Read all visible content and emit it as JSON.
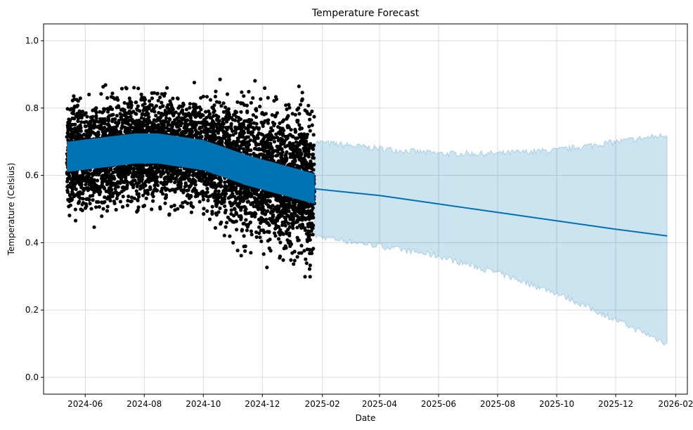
{
  "chart_data": {
    "type": "scatter",
    "title": "Temperature Forecast",
    "xlabel": "Date",
    "ylabel": "Temperature (Celsius)",
    "x_axis_type": "date",
    "xlim": [
      "2024-04-19",
      "2026-02-13"
    ],
    "ylim": [
      -0.05,
      1.05
    ],
    "grid": true,
    "legend": "none",
    "x_ticks": [
      "2024-06",
      "2024-08",
      "2024-10",
      "2024-12",
      "2025-02",
      "2025-04",
      "2025-06",
      "2025-08",
      "2025-10",
      "2025-12",
      "2026-02"
    ],
    "y_ticks": [
      "0.0",
      "0.2",
      "0.4",
      "0.6",
      "0.8",
      "1.0"
    ],
    "colors": {
      "observed_points": "#000000",
      "forecast_line": "#0072B2",
      "uncertainty_band": "#0072B2"
    },
    "observed_range": [
      "2024-05-13",
      "2025-01-24"
    ],
    "observed_value_range": [
      0.0,
      1.0
    ],
    "series": [
      {
        "kind": "forecast_mean",
        "points": [
          {
            "x": "2024-05-13",
            "y": 0.655
          },
          {
            "x": "2024-07-23",
            "y": 0.68
          },
          {
            "x": "2024-08-15",
            "y": 0.68
          },
          {
            "x": "2024-10-01",
            "y": 0.66
          },
          {
            "x": "2024-11-15",
            "y": 0.615
          },
          {
            "x": "2025-01-24",
            "y": 0.56
          },
          {
            "x": "2025-04-01",
            "y": 0.54
          },
          {
            "x": "2025-06-01",
            "y": 0.515
          },
          {
            "x": "2025-08-01",
            "y": 0.49
          },
          {
            "x": "2025-10-01",
            "y": 0.465
          },
          {
            "x": "2025-12-01",
            "y": 0.44
          },
          {
            "x": "2026-01-23",
            "y": 0.42
          }
        ]
      },
      {
        "kind": "uncertainty_upper",
        "points": [
          {
            "x": "2025-01-24",
            "y": 0.7
          },
          {
            "x": "2025-04-01",
            "y": 0.68
          },
          {
            "x": "2025-06-01",
            "y": 0.665
          },
          {
            "x": "2025-08-01",
            "y": 0.665
          },
          {
            "x": "2025-10-01",
            "y": 0.675
          },
          {
            "x": "2025-12-01",
            "y": 0.7
          },
          {
            "x": "2026-01-23",
            "y": 0.72
          }
        ]
      },
      {
        "kind": "uncertainty_lower",
        "points": [
          {
            "x": "2025-01-24",
            "y": 0.42
          },
          {
            "x": "2025-04-01",
            "y": 0.39
          },
          {
            "x": "2025-06-01",
            "y": 0.36
          },
          {
            "x": "2025-08-01",
            "y": 0.31
          },
          {
            "x": "2025-10-01",
            "y": 0.25
          },
          {
            "x": "2025-12-01",
            "y": 0.17
          },
          {
            "x": "2026-01-23",
            "y": 0.1
          }
        ]
      },
      {
        "kind": "observed_band_upper",
        "points": [
          {
            "x": "2024-05-13",
            "y": 0.7
          },
          {
            "x": "2024-07-23",
            "y": 0.725
          },
          {
            "x": "2024-08-15",
            "y": 0.725
          },
          {
            "x": "2024-10-01",
            "y": 0.705
          },
          {
            "x": "2024-11-15",
            "y": 0.66
          },
          {
            "x": "2025-01-24",
            "y": 0.605
          }
        ]
      },
      {
        "kind": "observed_band_lower",
        "points": [
          {
            "x": "2024-05-13",
            "y": 0.61
          },
          {
            "x": "2024-07-23",
            "y": 0.635
          },
          {
            "x": "2024-08-15",
            "y": 0.635
          },
          {
            "x": "2024-10-01",
            "y": 0.615
          },
          {
            "x": "2024-11-15",
            "y": 0.57
          },
          {
            "x": "2025-01-24",
            "y": 0.515
          }
        ]
      }
    ]
  }
}
